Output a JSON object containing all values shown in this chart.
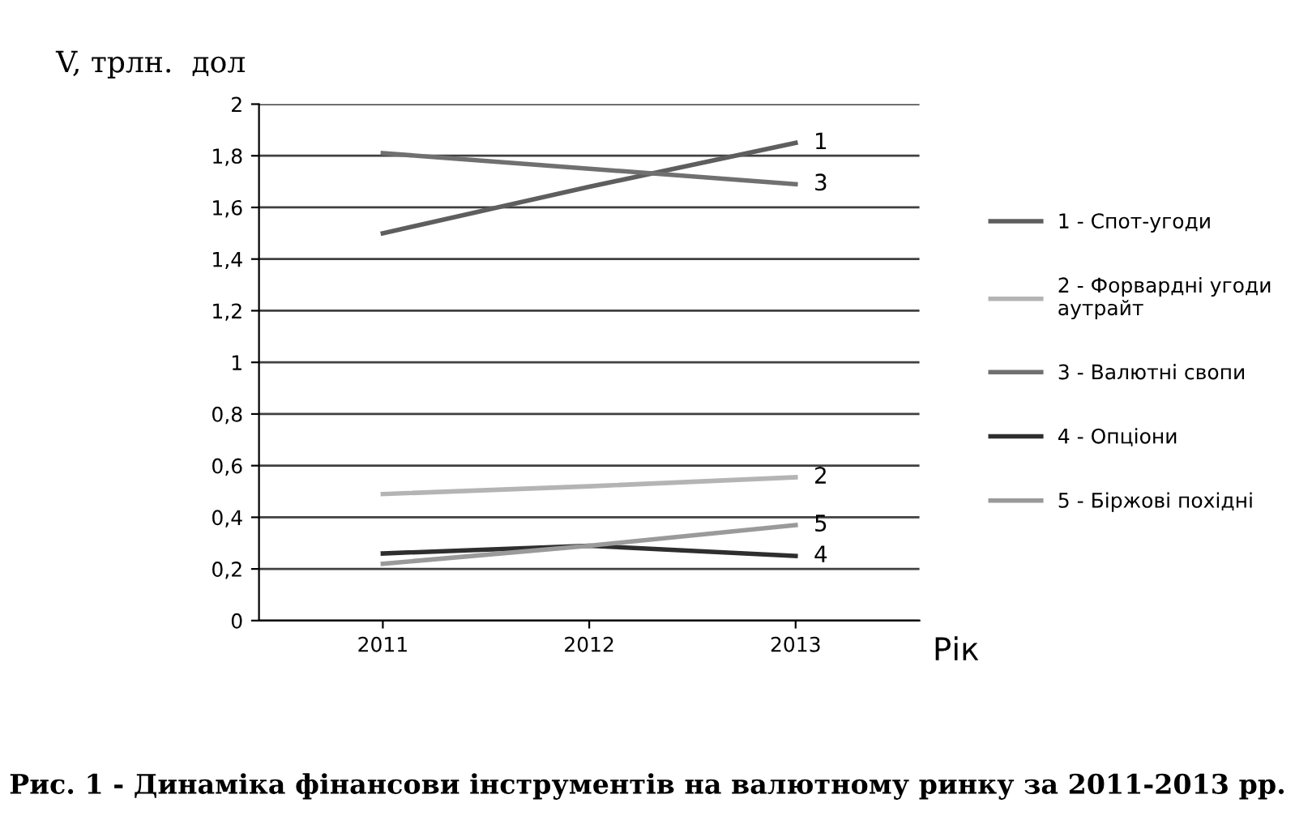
{
  "chart_data": {
    "type": "line",
    "title": "Рис. 1 - Динаміка фінансови інструментів на валютному ринку за 2011-2013 рр.",
    "xlabel": "Рік",
    "ylabel": "V, трлн.  дол",
    "categories": [
      "2011",
      "2012",
      "2013"
    ],
    "series": [
      {
        "name": "1 - Спот-угоди",
        "color": "#5e5e5e",
        "values": [
          1.5,
          1.68,
          1.85
        ]
      },
      {
        "name": "2 - Форвардні угоди аутрайт",
        "color": "#b4b4b4",
        "values": [
          0.49,
          0.52,
          0.555
        ]
      },
      {
        "name": "3 - Валютні свопи",
        "color": "#707070",
        "values": [
          1.81,
          1.75,
          1.69
        ]
      },
      {
        "name": "4 - Опціони",
        "color": "#2e2e2e",
        "values": [
          0.26,
          0.29,
          0.25
        ]
      },
      {
        "name": "5 - Біржові похідні",
        "color": "#9a9a9a",
        "values": [
          0.22,
          0.29,
          0.37
        ]
      }
    ],
    "annotations": [
      {
        "text": "1",
        "x": "2013",
        "y": 1.85
      },
      {
        "text": "3",
        "x": "2013",
        "y": 1.69
      },
      {
        "text": "2",
        "x": "2013",
        "y": 0.555
      },
      {
        "text": "5",
        "x": "2013",
        "y": 0.37
      },
      {
        "text": "4",
        "x": "2013",
        "y": 0.25
      }
    ],
    "ylim": [
      0,
      2
    ],
    "yticks": [
      0,
      {
        "value": 0.2,
        "label": "0,2"
      },
      {
        "value": 0.4,
        "label": "0,4"
      },
      {
        "value": 0.6,
        "label": "0,6"
      },
      {
        "value": 0.8,
        "label": "0,8"
      },
      1,
      {
        "value": 1.2,
        "label": "1,2"
      },
      {
        "value": 1.4,
        "label": "1,4"
      },
      {
        "value": 1.6,
        "label": "1,6"
      },
      {
        "value": 1.8,
        "label": "1,8"
      },
      2
    ],
    "grid": "y",
    "legend": "right",
    "marker": "none",
    "line_style": "solid"
  }
}
